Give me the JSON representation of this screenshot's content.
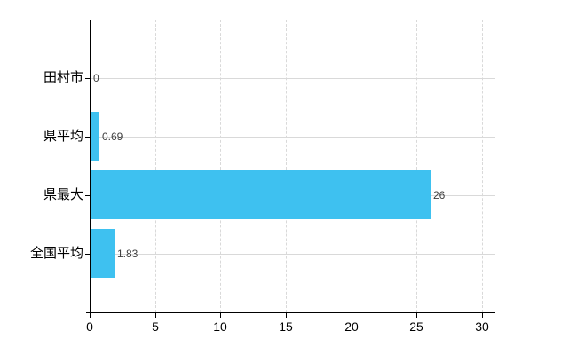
{
  "colors": {
    "background": "#FFFFFF",
    "bar": "#3EC1F0",
    "axis": "#000000",
    "grid": "#D9D9D9",
    "category_text": "#000000",
    "tick_text": "#000000",
    "value_text": "#404040"
  },
  "chart_data": {
    "type": "bar",
    "orientation": "horizontal",
    "title": "",
    "xlabel": "",
    "ylabel": "",
    "categories": [
      "田村市",
      "県平均",
      "県最大",
      "全国平均"
    ],
    "values": [
      0,
      0.69,
      26,
      1.83
    ],
    "value_labels": [
      "0",
      "0.69",
      "26",
      "1.83"
    ],
    "xlim": [
      0,
      30
    ],
    "x_ticks": [
      0,
      5,
      10,
      15,
      20,
      25,
      30
    ],
    "x_tick_labels": [
      "0",
      "5",
      "10",
      "15",
      "20",
      "25",
      "30"
    ],
    "grid": true,
    "legend_position": "none"
  }
}
